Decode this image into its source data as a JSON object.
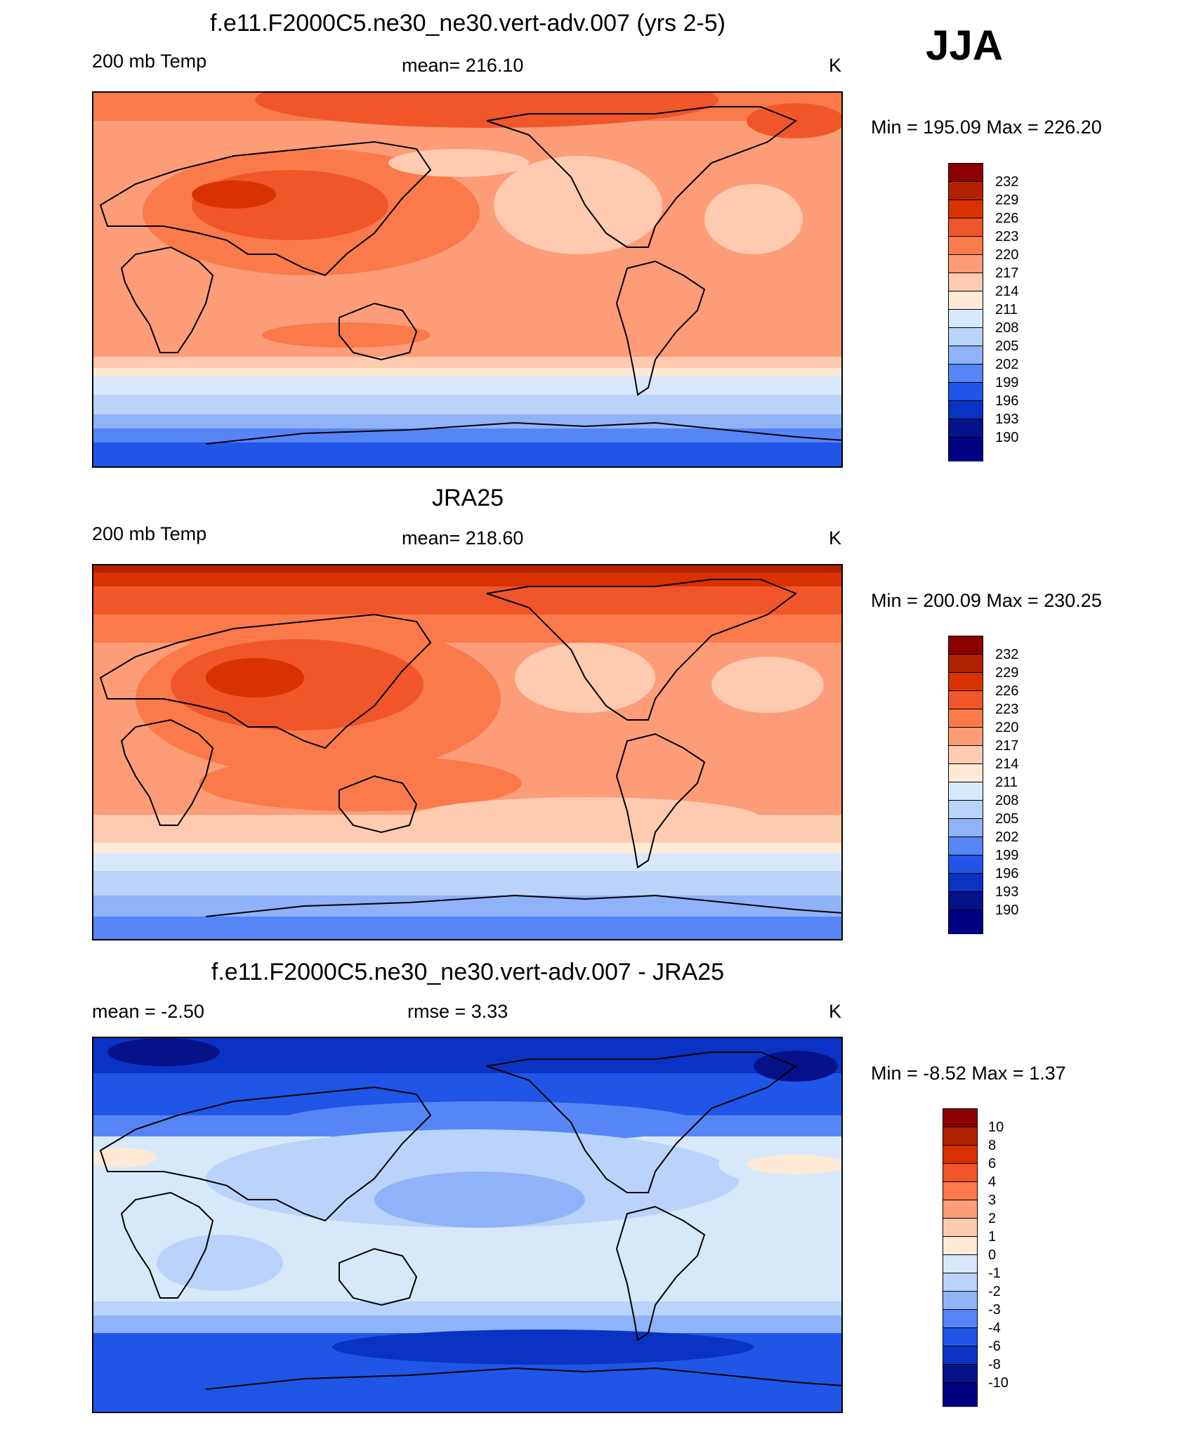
{
  "season": "JJA",
  "panels": [
    {
      "title": "f.e11.F2000C5.ne30_ne30.vert-adv.007 (yrs 2-5)",
      "left_label": "200 mb Temp",
      "center_label": "mean= 216.10",
      "units": "K",
      "minmax": "Min = 195.09 Max = 226.20",
      "colorbar_labels": [
        "232",
        "229",
        "226",
        "223",
        "220",
        "217",
        "214",
        "211",
        "208",
        "205",
        "202",
        "199",
        "196",
        "193",
        "190"
      ]
    },
    {
      "title": "JRA25",
      "left_label": "200 mb Temp",
      "center_label": "mean= 218.60",
      "units": "K",
      "minmax": "Min = 200.09 Max = 230.25",
      "colorbar_labels": [
        "232",
        "229",
        "226",
        "223",
        "220",
        "217",
        "214",
        "211",
        "208",
        "205",
        "202",
        "199",
        "196",
        "193",
        "190"
      ]
    },
    {
      "title": "f.e11.F2000C5.ne30_ne30.vert-adv.007 - JRA25",
      "left_label": "mean =  -2.50",
      "center_label": "rmse =   3.33",
      "units": "K",
      "minmax": "Min =  -8.52 Max =   1.37",
      "colorbar_labels": [
        "10",
        "8",
        "6",
        "4",
        "3",
        "2",
        "1",
        "0",
        "-1",
        "-2",
        "-3",
        "-4",
        "-6",
        "-8",
        "-10"
      ]
    }
  ],
  "colorbar_colors": [
    "#8b0000",
    "#b22200",
    "#d93200",
    "#f0562a",
    "#fa7a4c",
    "#fc9d78",
    "#fecab0",
    "#fde9d6",
    "#d8e8fb",
    "#b9d3fa",
    "#8fb2f8",
    "#5686f5",
    "#1f56e8",
    "#0a33c4",
    "#05128a",
    "#000080"
  ]
}
